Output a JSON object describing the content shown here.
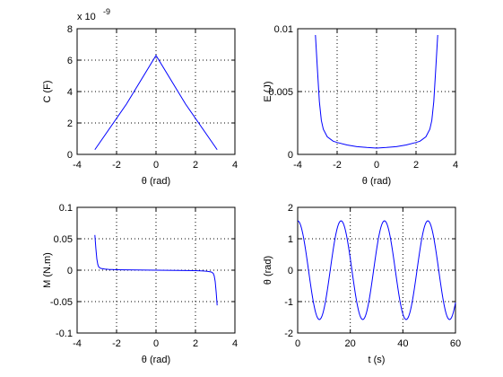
{
  "chart_data": [
    {
      "type": "line",
      "xlabel": "θ (rad)",
      "ylabel": "C (F)",
      "exponent_label": "x 10",
      "exponent_power": "-9",
      "xlim": [
        -4,
        4
      ],
      "ylim": [
        0,
        8
      ],
      "xticks": [
        -4,
        -2,
        0,
        2,
        4
      ],
      "yticks": [
        0,
        2,
        4,
        6,
        8
      ],
      "xticklabels": [
        "-4",
        "-2",
        "0",
        "2",
        "4"
      ],
      "yticklabels": [
        "0",
        "2",
        "4",
        "6",
        "8"
      ],
      "grid": true,
      "line_color": "#0000ff",
      "series": [
        {
          "x": [
            -3.1,
            -1.5,
            0,
            1.5,
            3.1
          ],
          "y": [
            0.3,
            3.2,
            6.3,
            3.2,
            0.3
          ]
        }
      ]
    },
    {
      "type": "line",
      "xlabel": "θ (rad)",
      "ylabel": "E (J)",
      "xlim": [
        -4,
        4
      ],
      "ylim": [
        0,
        0.01
      ],
      "xticks": [
        -4,
        -2,
        0,
        2,
        4
      ],
      "yticks": [
        0,
        0.005,
        0.01
      ],
      "xticklabels": [
        "-4",
        "-2",
        "0",
        "2",
        "4"
      ],
      "yticklabels": [
        "0",
        "0.005",
        "0.01"
      ],
      "grid": true,
      "line_color": "#0000ff",
      "series": [
        {
          "x": [
            -3.1,
            -3.0,
            -2.9,
            -2.8,
            -2.7,
            -2.5,
            -2.2,
            -2.0,
            -1.5,
            -1.0,
            -0.5,
            0,
            0.5,
            1.0,
            1.5,
            2.0,
            2.2,
            2.5,
            2.7,
            2.8,
            2.9,
            3.0,
            3.1
          ],
          "y": [
            0.0095,
            0.0068,
            0.0042,
            0.0027,
            0.002,
            0.0014,
            0.00105,
            0.00095,
            0.00075,
            0.00062,
            0.00055,
            0.0005,
            0.00055,
            0.00062,
            0.00075,
            0.00095,
            0.00105,
            0.0014,
            0.002,
            0.0027,
            0.0042,
            0.0068,
            0.0095
          ]
        }
      ]
    },
    {
      "type": "line",
      "xlabel": "θ (rad)",
      "ylabel": "M (N.m)",
      "xlim": [
        -4,
        4
      ],
      "ylim": [
        -0.1,
        0.1
      ],
      "xticks": [
        -4,
        -2,
        0,
        2,
        4
      ],
      "yticks": [
        -0.1,
        -0.05,
        0,
        0.05,
        0.1
      ],
      "xticklabels": [
        "-4",
        "-2",
        "0",
        "2",
        "4"
      ],
      "yticklabels": [
        "-0.1",
        "-0.05",
        "0",
        "0.05",
        "0.1"
      ],
      "grid": true,
      "line_color": "#0000ff",
      "series": [
        {
          "x": [
            -3.1,
            -3.05,
            -3.0,
            -2.95,
            -2.9,
            -2.8,
            -2.6,
            -2.4,
            -2.0,
            -1.0,
            0,
            1.0,
            2.0,
            2.4,
            2.6,
            2.8,
            2.9,
            2.95,
            3.0,
            3.05,
            3.1
          ],
          "y": [
            0.056,
            0.035,
            0.018,
            0.009,
            0.005,
            0.0028,
            0.0018,
            0.0012,
            0.0008,
            0.0004,
            0.0,
            -0.0004,
            -0.0008,
            -0.0012,
            -0.0018,
            -0.0028,
            -0.005,
            -0.009,
            -0.018,
            -0.035,
            -0.056
          ]
        }
      ]
    },
    {
      "type": "line",
      "xlabel": "t (s)",
      "ylabel": "θ (rad)",
      "xlim": [
        0,
        60
      ],
      "ylim": [
        -2,
        2
      ],
      "xticks": [
        0,
        20,
        40,
        60
      ],
      "yticks": [
        -2,
        -1,
        0,
        1,
        2
      ],
      "xticklabels": [
        "0",
        "20",
        "40",
        "60"
      ],
      "yticklabels": [
        "-2",
        "-1",
        "0",
        "1",
        "2"
      ],
      "grid": true,
      "line_color": "#0000ff",
      "series": [
        {
          "amplitude": 1.57,
          "period_s": 16.5,
          "t_start": 0,
          "t_end": 60,
          "y_at_t0": 1.57
        }
      ]
    }
  ]
}
